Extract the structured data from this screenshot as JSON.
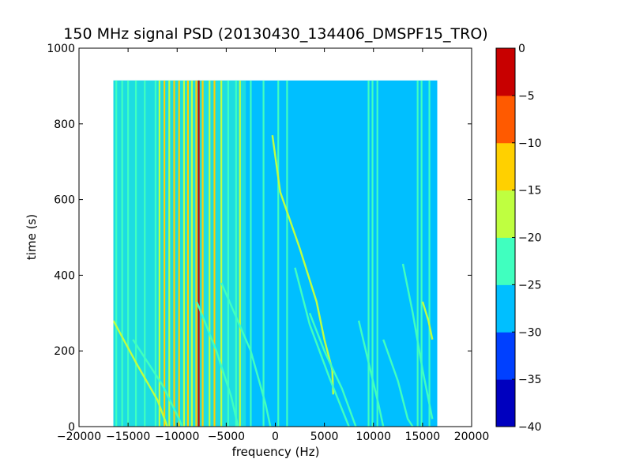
{
  "chart_data": {
    "type": "heatmap",
    "title": "150 MHz signal PSD (20130430_134406_DMSPF15_TRO)",
    "xlabel": "frequency (Hz)",
    "ylabel": "time (s)",
    "xlim": [
      -20000,
      20000
    ],
    "ylim": [
      0,
      1000
    ],
    "x_ticks": [
      -20000,
      -15000,
      -10000,
      -5000,
      0,
      5000,
      10000,
      15000,
      20000
    ],
    "x_tick_labels": [
      "−20000",
      "−15000",
      "−10000",
      "−5000",
      "0",
      "5000",
      "10000",
      "15000",
      "20000"
    ],
    "y_ticks": [
      0,
      200,
      400,
      600,
      800,
      1000
    ],
    "y_tick_labels": [
      "0",
      "200",
      "400",
      "600",
      "800",
      "1000"
    ],
    "data_extent": {
      "x": [
        -16500,
        16500
      ],
      "y": [
        0,
        915
      ]
    },
    "colorbar": {
      "levels": [
        -40,
        -35,
        -30,
        -25,
        -20,
        -15,
        -10,
        -5,
        0
      ],
      "level_labels": [
        "−40",
        "−35",
        "−30",
        "−25",
        "−20",
        "−15",
        "−10",
        "−5",
        "0"
      ],
      "colors": [
        "#0000bf",
        "#0040ff",
        "#00bfff",
        "#40ffbf",
        "#bfff40",
        "#ffd000",
        "#ff5a00",
        "#c80000"
      ]
    },
    "background_value_db": -27.5,
    "vertical_lines": [
      {
        "f": -16200,
        "db": -22
      },
      {
        "f": -15600,
        "db": -22
      },
      {
        "f": -15000,
        "db": -22
      },
      {
        "f": -14200,
        "db": -22
      },
      {
        "f": -13300,
        "db": -22
      },
      {
        "f": -12200,
        "db": -22
      },
      {
        "f": -11800,
        "db": -17
      },
      {
        "f": -11300,
        "db": -12
      },
      {
        "f": -10800,
        "db": -17
      },
      {
        "f": -10300,
        "db": -12
      },
      {
        "f": -9800,
        "db": -12
      },
      {
        "f": -9300,
        "db": -17
      },
      {
        "f": -8900,
        "db": -12
      },
      {
        "f": -8500,
        "db": -17
      },
      {
        "f": -8050,
        "db": -12
      },
      {
        "f": -7800,
        "db": -2
      },
      {
        "f": -7400,
        "db": -12
      },
      {
        "f": -6700,
        "db": -17
      },
      {
        "f": -6200,
        "db": -12
      },
      {
        "f": -5500,
        "db": -17
      },
      {
        "f": -4800,
        "db": -22
      },
      {
        "f": -4000,
        "db": -22
      },
      {
        "f": -3600,
        "db": -17
      },
      {
        "f": -2500,
        "db": -22
      },
      {
        "f": -1200,
        "db": -22
      },
      {
        "f": 300,
        "db": -22
      },
      {
        "f": 1200,
        "db": -22
      },
      {
        "f": 9500,
        "db": -22
      },
      {
        "f": 9900,
        "db": -22
      },
      {
        "f": 10400,
        "db": -22
      },
      {
        "f": 14500,
        "db": -22
      },
      {
        "f": 14900,
        "db": -22
      },
      {
        "f": 15700,
        "db": -22
      }
    ],
    "doppler_tracks": [
      {
        "db": -17,
        "points": [
          [
            -16500,
            280
          ],
          [
            -14000,
            160
          ],
          [
            -12000,
            70
          ],
          [
            -11000,
            0
          ]
        ]
      },
      {
        "db": -22,
        "points": [
          [
            -14500,
            230
          ],
          [
            -11500,
            110
          ],
          [
            -9800,
            20
          ],
          [
            -9500,
            0
          ]
        ]
      },
      {
        "db": -22,
        "points": [
          [
            -8000,
            330
          ],
          [
            -6000,
            200
          ],
          [
            -4500,
            80
          ],
          [
            -3800,
            0
          ]
        ]
      },
      {
        "db": -22,
        "points": [
          [
            -5500,
            380
          ],
          [
            -2500,
            200
          ],
          [
            -1000,
            60
          ],
          [
            -500,
            0
          ]
        ]
      },
      {
        "db": -17,
        "points": [
          [
            -300,
            770
          ],
          [
            500,
            620
          ],
          [
            2500,
            470
          ],
          [
            4200,
            330
          ],
          [
            5000,
            230
          ],
          [
            5800,
            150
          ],
          [
            5900,
            85
          ]
        ]
      },
      {
        "db": -22,
        "points": [
          [
            2000,
            420
          ],
          [
            3500,
            270
          ],
          [
            5500,
            130
          ],
          [
            7500,
            0
          ]
        ]
      },
      {
        "db": -22,
        "points": [
          [
            3500,
            300
          ],
          [
            5000,
            200
          ],
          [
            6800,
            100
          ],
          [
            8200,
            0
          ]
        ]
      },
      {
        "db": -22,
        "points": [
          [
            8500,
            280
          ],
          [
            9500,
            170
          ],
          [
            10500,
            60
          ],
          [
            11000,
            0
          ]
        ]
      },
      {
        "db": -22,
        "points": [
          [
            11000,
            230
          ],
          [
            12500,
            120
          ],
          [
            13500,
            20
          ],
          [
            14000,
            0
          ]
        ]
      },
      {
        "db": -22,
        "points": [
          [
            13000,
            430
          ],
          [
            14000,
            300
          ],
          [
            15000,
            150
          ],
          [
            16000,
            20
          ]
        ]
      },
      {
        "db": -17,
        "points": [
          [
            15000,
            330
          ],
          [
            15600,
            280
          ],
          [
            16000,
            230
          ]
        ]
      }
    ]
  }
}
